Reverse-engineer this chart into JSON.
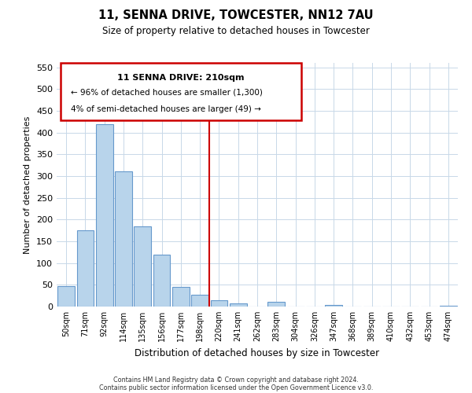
{
  "title": "11, SENNA DRIVE, TOWCESTER, NN12 7AU",
  "subtitle": "Size of property relative to detached houses in Towcester",
  "xlabel": "Distribution of detached houses by size in Towcester",
  "ylabel": "Number of detached properties",
  "bar_labels": [
    "50sqm",
    "71sqm",
    "92sqm",
    "114sqm",
    "135sqm",
    "156sqm",
    "177sqm",
    "198sqm",
    "220sqm",
    "241sqm",
    "262sqm",
    "283sqm",
    "304sqm",
    "326sqm",
    "347sqm",
    "368sqm",
    "389sqm",
    "410sqm",
    "432sqm",
    "453sqm",
    "474sqm"
  ],
  "bar_heights": [
    47,
    175,
    420,
    310,
    185,
    120,
    46,
    27,
    15,
    8,
    0,
    10,
    0,
    0,
    3,
    0,
    0,
    0,
    0,
    0,
    2
  ],
  "bar_color": "#b8d4eb",
  "bar_edge_color": "#6699cc",
  "vline_x": 7.5,
  "vline_color": "#cc0000",
  "ylim": [
    0,
    560
  ],
  "yticks": [
    0,
    50,
    100,
    150,
    200,
    250,
    300,
    350,
    400,
    450,
    500,
    550
  ],
  "annotation_title": "11 SENNA DRIVE: 210sqm",
  "annotation_line1": "← 96% of detached houses are smaller (1,300)",
  "annotation_line2": "4% of semi-detached houses are larger (49) →",
  "footer_line1": "Contains HM Land Registry data © Crown copyright and database right 2024.",
  "footer_line2": "Contains public sector information licensed under the Open Government Licence v3.0.",
  "background_color": "#ffffff",
  "grid_color": "#c8d8e8"
}
